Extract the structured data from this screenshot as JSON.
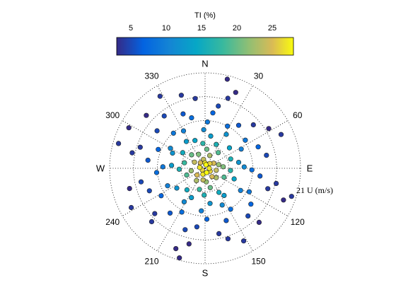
{
  "chart_data": {
    "type": "scatter",
    "subtype": "polar-wind-rose",
    "colorbar": {
      "title": "TI (%)",
      "colormap": "parula",
      "range": [
        3,
        28
      ],
      "ticks": [
        "5",
        "10",
        "15",
        "20",
        "25"
      ],
      "tick_values": [
        5,
        10,
        15,
        20,
        25
      ]
    },
    "compass_labels": [
      "N",
      "E",
      "S",
      "W"
    ],
    "compass_angles": [
      0,
      90,
      180,
      270
    ],
    "angle_labels": [
      "30",
      "60",
      "120",
      "150",
      "210",
      "240",
      "300",
      "330"
    ],
    "angle_values": [
      30,
      60,
      120,
      150,
      210,
      240,
      300,
      330
    ],
    "radial_unit_label": "U (m/s)",
    "radial_max_label": "21",
    "radial_max": 21,
    "radial_ring_values": [
      5.25,
      10.5,
      15.75,
      21
    ],
    "grid": true,
    "series": [
      {
        "points": [
          [
            0,
            1.2,
            27
          ],
          [
            15,
            0.8,
            28
          ],
          [
            45,
            1.5,
            26
          ],
          [
            90,
            0.9,
            27
          ],
          [
            120,
            1.3,
            26
          ],
          [
            160,
            1.0,
            28
          ],
          [
            200,
            1.4,
            27
          ],
          [
            240,
            0.7,
            26
          ],
          [
            280,
            1.2,
            27
          ],
          [
            320,
            1.6,
            25
          ],
          [
            350,
            2.0,
            24
          ],
          [
            60,
            2.2,
            25
          ],
          [
            100,
            2.5,
            24
          ],
          [
            140,
            2.4,
            25
          ],
          [
            190,
            2.6,
            24
          ],
          [
            230,
            2.3,
            25
          ],
          [
            300,
            2.7,
            24
          ],
          [
            20,
            3.0,
            23
          ],
          [
            75,
            3.1,
            22
          ],
          [
            130,
            3.2,
            23
          ],
          [
            175,
            3.0,
            22
          ],
          [
            215,
            3.3,
            23
          ],
          [
            260,
            3.1,
            22
          ],
          [
            335,
            3.4,
            21
          ],
          [
            5,
            4.2,
            20
          ],
          [
            40,
            4.5,
            19
          ],
          [
            85,
            4.0,
            21
          ],
          [
            115,
            4.6,
            19
          ],
          [
            165,
            4.4,
            20
          ],
          [
            195,
            4.8,
            18
          ],
          [
            250,
            4.3,
            19
          ],
          [
            285,
            4.7,
            18
          ],
          [
            315,
            4.2,
            20
          ],
          [
            355,
            5.5,
            17
          ],
          [
            25,
            5.8,
            16
          ],
          [
            70,
            6.0,
            16
          ],
          [
            95,
            5.6,
            17
          ],
          [
            150,
            6.1,
            15
          ],
          [
            182,
            5.9,
            16
          ],
          [
            220,
            6.2,
            15
          ],
          [
            268,
            5.7,
            16
          ],
          [
            305,
            6.0,
            15
          ],
          [
            340,
            6.5,
            14
          ],
          [
            10,
            7.2,
            13
          ],
          [
            50,
            7.0,
            14
          ],
          [
            80,
            7.5,
            12
          ],
          [
            110,
            6.8,
            14
          ],
          [
            145,
            7.3,
            13
          ],
          [
            172,
            7.8,
            12
          ],
          [
            205,
            7.1,
            13
          ],
          [
            235,
            7.6,
            12
          ],
          [
            275,
            7.4,
            13
          ],
          [
            295,
            7.9,
            12
          ],
          [
            325,
            7.2,
            13
          ],
          [
            358,
            8.5,
            11
          ],
          [
            32,
            8.8,
            12
          ],
          [
            62,
            9.0,
            10
          ],
          [
            88,
            8.6,
            11
          ],
          [
            122,
            9.2,
            10
          ],
          [
            155,
            8.9,
            11
          ],
          [
            185,
            9.4,
            10
          ],
          [
            212,
            8.7,
            11
          ],
          [
            245,
            9.1,
            10
          ],
          [
            272,
            9.3,
            9
          ],
          [
            300,
            8.8,
            11
          ],
          [
            330,
            9.5,
            10
          ],
          [
            3,
            10.2,
            9
          ],
          [
            28,
            10.5,
            8
          ],
          [
            55,
            10.8,
            9
          ],
          [
            92,
            10.3,
            8
          ],
          [
            118,
            11.0,
            9
          ],
          [
            148,
            10.6,
            8
          ],
          [
            178,
            11.2,
            7
          ],
          [
            208,
            10.9,
            8
          ],
          [
            238,
            11.4,
            7
          ],
          [
            265,
            10.7,
            8
          ],
          [
            292,
            11.1,
            7
          ],
          [
            318,
            10.4,
            9
          ],
          [
            345,
            11.5,
            8
          ],
          [
            8,
            12.3,
            7
          ],
          [
            38,
            12.0,
            6
          ],
          [
            68,
            12.6,
            7
          ],
          [
            98,
            12.2,
            6
          ],
          [
            128,
            12.8,
            7
          ],
          [
            158,
            12.4,
            6
          ],
          [
            188,
            13.0,
            5
          ],
          [
            218,
            12.5,
            6
          ],
          [
            248,
            13.2,
            5
          ],
          [
            278,
            12.7,
            6
          ],
          [
            308,
            13.4,
            5
          ],
          [
            338,
            12.9,
            6
          ],
          [
            12,
            14.0,
            5
          ],
          [
            48,
            14.3,
            4
          ],
          [
            78,
            13.8,
            5
          ],
          [
            108,
            14.5,
            4
          ],
          [
            138,
            14.1,
            5
          ],
          [
            168,
            14.7,
            4
          ],
          [
            198,
            14.2,
            5
          ],
          [
            228,
            14.9,
            4
          ],
          [
            258,
            14.4,
            5
          ],
          [
            288,
            15.0,
            4
          ],
          [
            322,
            14.6,
            5
          ],
          [
            352,
            15.5,
            4
          ],
          [
            18,
            16.2,
            4
          ],
          [
            58,
            16.5,
            3
          ],
          [
            102,
            16.0,
            4
          ],
          [
            135,
            16.8,
            3
          ],
          [
            162,
            16.3,
            4
          ],
          [
            192,
            17.0,
            3
          ],
          [
            225,
            16.6,
            4
          ],
          [
            255,
            17.2,
            3
          ],
          [
            282,
            16.4,
            4
          ],
          [
            312,
            17.4,
            3
          ],
          [
            342,
            16.9,
            4
          ],
          [
            22,
            18.0,
            3
          ],
          [
            66,
            18.3,
            4
          ],
          [
            112,
            18.6,
            3
          ],
          [
            152,
            18.1,
            4
          ],
          [
            200,
            18.8,
            3
          ],
          [
            242,
            18.4,
            4
          ],
          [
            298,
            19.0,
            3
          ],
          [
            328,
            18.7,
            4
          ],
          [
            14,
            20.2,
            3
          ],
          [
            108,
            20.0,
            4
          ],
          [
            196,
            20.5,
            3
          ],
          [
            286,
            19.8,
            4
          ]
        ]
      }
    ]
  }
}
